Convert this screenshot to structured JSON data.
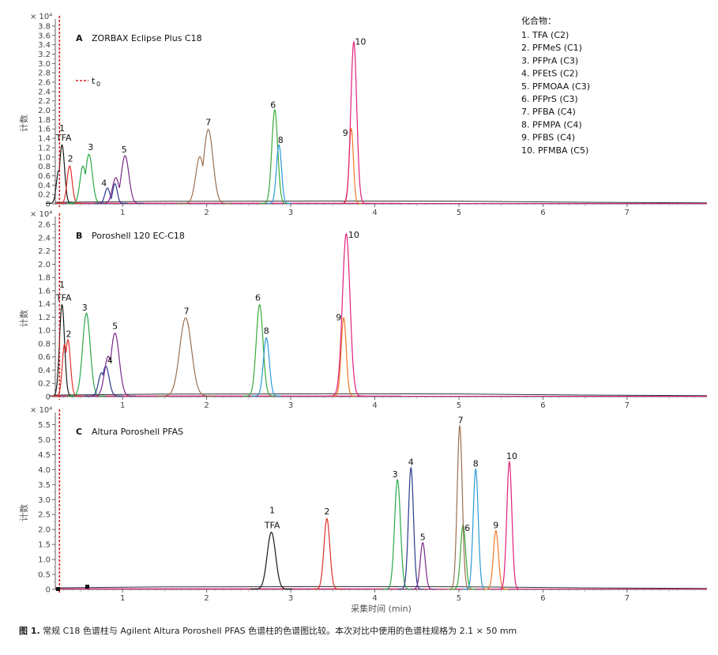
{
  "colors": {
    "1": "#1a1a1a",
    "2": "#e0302a",
    "3": "#2aa84a",
    "4": "#2a3a8a",
    "5": "#7a2a8a",
    "6": "#3aaa3a",
    "7": "#9a7050",
    "8": "#2a9ad8",
    "9": "#f07828",
    "10": "#e0207a",
    "baseline": "#333333",
    "t0": "#d42020"
  },
  "caption": {
    "label": "图 1.",
    "text": "常规 C18 色谱柱与 Agilent Altura Poroshell PFAS 色谱柱的色谱图比较。本次对比中使用的色谱柱规格为 2.1 × 50 mm"
  },
  "chart_data": [
    {
      "type": "line",
      "panel": "A",
      "title": "ZORBAX Eclipse Plus C18",
      "xlabel": "",
      "ylabel": "计数",
      "y_multiplier": "× 10⁴",
      "xlim": [
        0.2,
        7.95
      ],
      "ylim": [
        0,
        3.85
      ],
      "x_ticks": [
        1,
        2,
        3,
        4,
        5,
        6,
        7
      ],
      "y_ticks": [
        0,
        0.2,
        0.4,
        0.6,
        0.8,
        1.0,
        1.2,
        1.4,
        1.6,
        1.8,
        2.0,
        2.2,
        2.4,
        2.6,
        2.8,
        3.0,
        3.2,
        3.4,
        3.6,
        3.8
      ],
      "t0": {
        "x": 0.25,
        "label": "t",
        "sub": "0"
      },
      "peaks": [
        {
          "id": "1",
          "x": 0.28,
          "height": 1.25,
          "width": 0.03,
          "shoulder": {
            "dx": -0.04,
            "h": 0.7
          }
        },
        {
          "id": "2",
          "x": 0.37,
          "height": 0.8,
          "width": 0.03
        },
        {
          "id": "3",
          "x": 0.6,
          "height": 1.05,
          "width": 0.04,
          "shoulder": {
            "dx": -0.07,
            "h": 0.8
          }
        },
        {
          "id": "4",
          "x": 0.82,
          "height": 0.33,
          "width": 0.03,
          "shoulder": {
            "dx": 0.09,
            "h": 0.42
          }
        },
        {
          "id": "5",
          "x": 1.03,
          "height": 1.02,
          "width": 0.045,
          "shoulder": {
            "dx": -0.11,
            "h": 0.55
          }
        },
        {
          "id": "6",
          "x": 2.81,
          "height": 2.0,
          "width": 0.035
        },
        {
          "id": "7",
          "x": 2.02,
          "height": 1.58,
          "width": 0.055,
          "shoulder": {
            "dx": -0.1,
            "h": 1.0
          }
        },
        {
          "id": "8",
          "x": 2.86,
          "height": 1.25,
          "width": 0.03
        },
        {
          "id": "9",
          "x": 3.72,
          "height": 1.6,
          "width": 0.025
        },
        {
          "id": "10",
          "x": 3.75,
          "height": 3.45,
          "width": 0.035
        }
      ],
      "labels": [
        {
          "text": "1",
          "x": 0.28,
          "y": 1.55
        },
        {
          "text": "TFA",
          "x": 0.3,
          "y": 1.35
        },
        {
          "text": "2",
          "x": 0.38,
          "y": 0.9
        },
        {
          "text": "3",
          "x": 0.62,
          "y": 1.15
        },
        {
          "text": "4",
          "x": 0.78,
          "y": 0.38
        },
        {
          "text": "5",
          "x": 1.02,
          "y": 1.1
        },
        {
          "text": "7",
          "x": 2.02,
          "y": 1.68
        },
        {
          "text": "6",
          "x": 2.79,
          "y": 2.05
        },
        {
          "text": "8",
          "x": 2.88,
          "y": 1.3
        },
        {
          "text": "9",
          "x": 3.65,
          "y": 1.45
        },
        {
          "text": "10",
          "x": 3.83,
          "y": 3.4
        }
      ]
    },
    {
      "type": "line",
      "panel": "B",
      "title": "Poroshell 120 EC-C18",
      "xlabel": "",
      "ylabel": "计数",
      "y_multiplier": "× 10⁴",
      "xlim": [
        0.2,
        7.95
      ],
      "ylim": [
        0,
        2.65
      ],
      "x_ticks": [
        1,
        2,
        3,
        4,
        5,
        6,
        7
      ],
      "y_ticks": [
        0,
        0.2,
        0.4,
        0.6,
        0.8,
        1.0,
        1.2,
        1.4,
        1.6,
        1.8,
        2.0,
        2.2,
        2.4,
        2.6
      ],
      "t0": {
        "x": 0.25,
        "label": "",
        "sub": ""
      },
      "peaks": [
        {
          "id": "1",
          "x": 0.28,
          "height": 1.38,
          "width": 0.03
        },
        {
          "id": "2",
          "x": 0.35,
          "height": 0.85,
          "width": 0.03,
          "shoulder": {
            "dx": -0.04,
            "h": 0.78
          }
        },
        {
          "id": "3",
          "x": 0.57,
          "height": 1.25,
          "width": 0.045
        },
        {
          "id": "4",
          "x": 0.8,
          "height": 0.45,
          "width": 0.04,
          "shoulder": {
            "dx": -0.05,
            "h": 0.35
          }
        },
        {
          "id": "5",
          "x": 0.91,
          "height": 0.95,
          "width": 0.05,
          "shoulder": {
            "dx": -0.08,
            "h": 0.6
          }
        },
        {
          "id": "6",
          "x": 2.63,
          "height": 1.38,
          "width": 0.04
        },
        {
          "id": "7",
          "x": 1.75,
          "height": 1.18,
          "width": 0.07
        },
        {
          "id": "8",
          "x": 2.71,
          "height": 0.88,
          "width": 0.035
        },
        {
          "id": "9",
          "x": 3.63,
          "height": 1.18,
          "width": 0.03
        },
        {
          "id": "10",
          "x": 3.66,
          "height": 2.45,
          "width": 0.045
        }
      ],
      "labels": [
        {
          "text": "1",
          "x": 0.28,
          "y": 1.65
        },
        {
          "text": "TFA",
          "x": 0.3,
          "y": 1.45
        },
        {
          "text": "2",
          "x": 0.36,
          "y": 0.9
        },
        {
          "text": "3",
          "x": 0.55,
          "y": 1.3
        },
        {
          "text": "4",
          "x": 0.85,
          "y": 0.5
        },
        {
          "text": "5",
          "x": 0.91,
          "y": 1.02
        },
        {
          "text": "7",
          "x": 1.76,
          "y": 1.25
        },
        {
          "text": "6",
          "x": 2.61,
          "y": 1.45
        },
        {
          "text": "8",
          "x": 2.71,
          "y": 0.95
        },
        {
          "text": "9",
          "x": 3.57,
          "y": 1.15
        },
        {
          "text": "10",
          "x": 3.75,
          "y": 2.4
        }
      ]
    },
    {
      "type": "line",
      "panel": "C",
      "title": "Altura Poroshell PFAS",
      "xlabel": "采集时间 (min)",
      "ylabel": "计数",
      "y_multiplier": "× 10⁴",
      "xlim": [
        0.2,
        7.95
      ],
      "ylim": [
        0,
        5.75
      ],
      "x_ticks": [
        1,
        2,
        3,
        4,
        5,
        6,
        7
      ],
      "y_ticks": [
        0,
        0.5,
        1.0,
        1.5,
        2.0,
        2.5,
        3.0,
        3.5,
        4.0,
        4.5,
        5.0,
        5.5
      ],
      "t0": {
        "x": 0.25,
        "label": "",
        "sub": ""
      },
      "peaks": [
        {
          "id": "1",
          "x": 2.77,
          "height": 1.9,
          "width": 0.05
        },
        {
          "id": "2",
          "x": 3.43,
          "height": 2.35,
          "width": 0.035
        },
        {
          "id": "3",
          "x": 4.27,
          "height": 3.65,
          "width": 0.035
        },
        {
          "id": "4",
          "x": 4.43,
          "height": 4.05,
          "width": 0.03
        },
        {
          "id": "5",
          "x": 4.57,
          "height": 1.55,
          "width": 0.03
        },
        {
          "id": "6",
          "x": 5.05,
          "height": 2.15,
          "width": 0.03
        },
        {
          "id": "7",
          "x": 5.01,
          "height": 5.45,
          "width": 0.03
        },
        {
          "id": "8",
          "x": 5.2,
          "height": 4.0,
          "width": 0.03
        },
        {
          "id": "9",
          "x": 5.44,
          "height": 1.95,
          "width": 0.03
        },
        {
          "id": "10",
          "x": 5.6,
          "height": 4.25,
          "width": 0.03
        }
      ],
      "labels": [
        {
          "text": "1",
          "x": 2.78,
          "y": 2.55
        },
        {
          "text": "TFA",
          "x": 2.78,
          "y": 2.05
        },
        {
          "text": "2",
          "x": 3.43,
          "y": 2.5
        },
        {
          "text": "3",
          "x": 4.24,
          "y": 3.75
        },
        {
          "text": "4",
          "x": 4.43,
          "y": 4.15
        },
        {
          "text": "5",
          "x": 4.57,
          "y": 1.65
        },
        {
          "text": "6",
          "x": 5.1,
          "y": 1.95
        },
        {
          "text": "7",
          "x": 5.02,
          "y": 5.55
        },
        {
          "text": "8",
          "x": 5.2,
          "y": 4.1
        },
        {
          "text": "9",
          "x": 5.44,
          "y": 2.05
        },
        {
          "text": "10",
          "x": 5.63,
          "y": 4.35
        }
      ]
    }
  ],
  "legend": {
    "title": "化合物：",
    "items": [
      "1. TFA (C2)",
      "2. PFMeS (C1)",
      "3. PFPrA (C3)",
      "4. PFEtS (C2)",
      "5. PFMOAA (C3)",
      "6. PFPrS (C3)",
      "7. PFBA (C4)",
      "8. PFMPA (C4)",
      "9. PFBS (C4)",
      "10. PFMBA (C5)"
    ]
  }
}
